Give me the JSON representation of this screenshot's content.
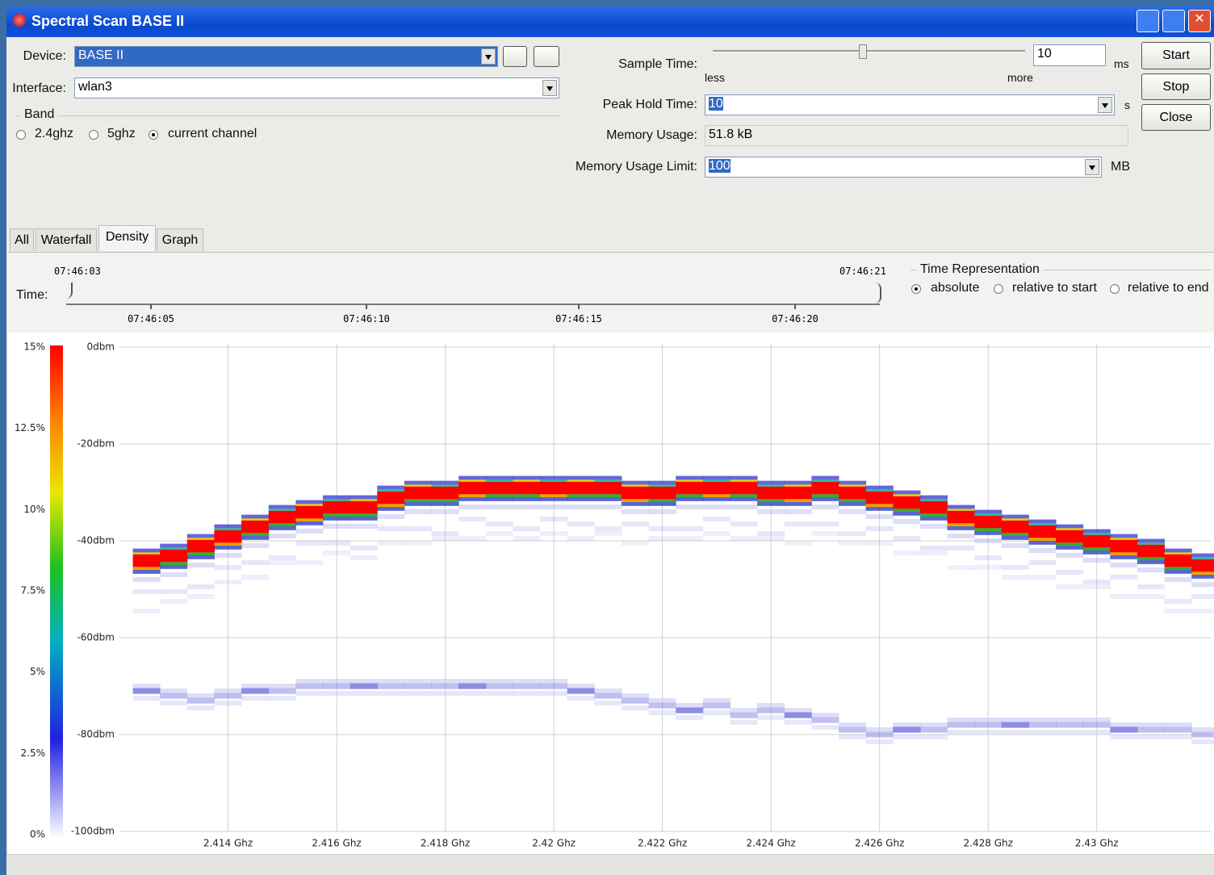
{
  "window": {
    "title": "Spectral Scan BASE II"
  },
  "form": {
    "device": {
      "label": "Device:",
      "value": "BASE II"
    },
    "interface": {
      "label": "Interface:",
      "value": "wlan3"
    },
    "band": {
      "label": "Band",
      "options": [
        "2.4ghz",
        "5ghz",
        "current channel"
      ],
      "selected": 2
    },
    "sample_time": {
      "label": "Sample Time:",
      "value": "10",
      "unit": "ms",
      "less": "less",
      "more": "more"
    },
    "peak_hold_time": {
      "label": "Peak Hold Time:",
      "value": "10",
      "unit": "s"
    },
    "memory_usage": {
      "label": "Memory Usage:",
      "value": "51.8 kB"
    },
    "memory_usage_limit": {
      "label": "Memory Usage Limit:",
      "value": "100",
      "unit": "MB"
    },
    "buttons": [
      "Start",
      "Stop",
      "Close"
    ]
  },
  "tabs": {
    "items": [
      "All",
      "Waterfall",
      "Density",
      "Graph"
    ],
    "active": 2
  },
  "time": {
    "label": "Time:",
    "start": "07:46:03",
    "end": "07:46:21",
    "ticks": [
      "07:46:05",
      "07:46:10",
      "07:46:15",
      "07:46:20"
    ]
  },
  "time_representation": {
    "title": "Time Representation",
    "options": [
      "absolute",
      "relative to start",
      "relative to end"
    ],
    "selected": 0
  },
  "chart_data": {
    "type": "heatmap",
    "x": [
      2.4125,
      2.413,
      2.4135,
      2.414,
      2.4145,
      2.415,
      2.4155,
      2.416,
      2.4165,
      2.417,
      2.4175,
      2.418,
      2.4185,
      2.419,
      2.4195,
      2.42,
      2.4205,
      2.421,
      2.4215,
      2.422,
      2.4225,
      2.423,
      2.4235,
      2.424,
      2.4245,
      2.425,
      2.4255,
      2.426,
      2.4265,
      2.427,
      2.4275,
      2.428,
      2.4285,
      2.429,
      2.4295,
      2.43,
      2.4305,
      2.431,
      2.4315,
      2.432
    ],
    "series": [
      {
        "color": "#ff0000",
        "values": [
          -44,
          -43,
          -41,
          -39,
          -37,
          -35,
          -34,
          -33,
          -33,
          -31,
          -30,
          -30,
          -29,
          -29,
          -29,
          -29,
          -29,
          -29,
          -30,
          -30,
          -29,
          -29,
          -29,
          -30,
          -30,
          -29,
          -30,
          -31,
          -32,
          -33,
          -35,
          -36,
          -37,
          -38,
          -39,
          -40,
          -41,
          -42,
          -44,
          -45
        ]
      },
      {
        "color": "#7070dd",
        "values": [
          -71,
          -72,
          -73,
          -72,
          -71,
          -71,
          -70,
          -70,
          -70,
          -70,
          -70,
          -70,
          -70,
          -70,
          -70,
          -70,
          -71,
          -72,
          -73,
          -74,
          -75,
          -74,
          -76,
          -75,
          -76,
          -77,
          -79,
          -80,
          -79,
          -79,
          -78,
          -78,
          -78,
          -78,
          -78,
          -78,
          -79,
          -79,
          -79,
          -80
        ]
      }
    ],
    "xlim": [
      2.412,
      2.4321
    ],
    "xticks": [
      {
        "value": 2.414,
        "label": "2.414 Ghz"
      },
      {
        "value": 2.416,
        "label": "2.416 Ghz"
      },
      {
        "value": 2.418,
        "label": "2.418 Ghz"
      },
      {
        "value": 2.42,
        "label": "2.42 Ghz"
      },
      {
        "value": 2.422,
        "label": "2.422 Ghz"
      },
      {
        "value": 2.424,
        "label": "2.424 Ghz"
      },
      {
        "value": 2.426,
        "label": "2.426 Ghz"
      },
      {
        "value": 2.428,
        "label": "2.428 Ghz"
      },
      {
        "value": 2.43,
        "label": "2.43 Ghz"
      }
    ],
    "ylim": [
      -100,
      0
    ],
    "yticks": [
      {
        "value": 0,
        "label": "0dbm"
      },
      {
        "value": -20,
        "label": "-20dbm"
      },
      {
        "value": -40,
        "label": "-40dbm"
      },
      {
        "value": -60,
        "label": "-60dbm"
      },
      {
        "value": -80,
        "label": "-80dbm"
      },
      {
        "value": -100,
        "label": "-100dbm"
      }
    ],
    "grid": true,
    "colorbar": {
      "lim": [
        0,
        15
      ],
      "ticks": [
        {
          "value": 15,
          "label": "15%"
        },
        {
          "value": 12.5,
          "label": "12.5%"
        },
        {
          "value": 10,
          "label": "10%"
        },
        {
          "value": 7.5,
          "label": "7.5%"
        },
        {
          "value": 5,
          "label": "5%"
        },
        {
          "value": 2.5,
          "label": "2.5%"
        },
        {
          "value": 0,
          "label": "0%"
        }
      ]
    }
  }
}
